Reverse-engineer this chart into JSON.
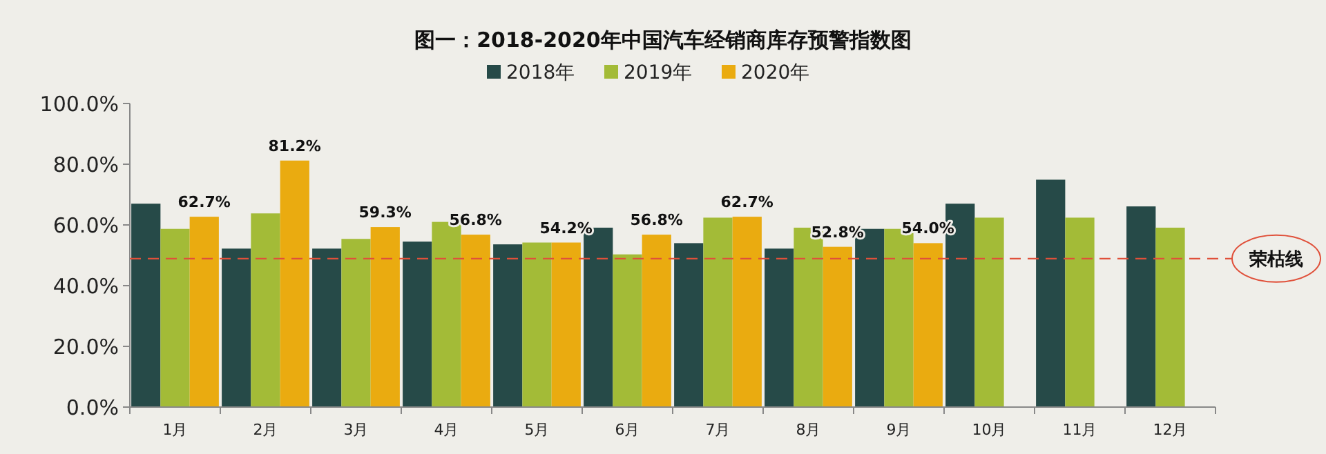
{
  "chart_data": {
    "type": "bar",
    "title": "图一：2018-2020年中国汽车经销商库存预警指数图",
    "categories": [
      "1月",
      "2月",
      "3月",
      "4月",
      "5月",
      "6月",
      "7月",
      "8月",
      "9月",
      "10月",
      "11月",
      "12月"
    ],
    "series": [
      {
        "name": "2018年",
        "color": "#264a48",
        "values": [
          67.0,
          52.2,
          52.2,
          54.5,
          53.6,
          59.1,
          54.0,
          52.2,
          58.7,
          67.0,
          74.9,
          66.1
        ]
      },
      {
        "name": "2019年",
        "color": "#a3bb37",
        "values": [
          58.7,
          63.8,
          55.4,
          61.0,
          54.2,
          50.3,
          62.4,
          59.1,
          58.7,
          62.4,
          62.4,
          59.1
        ]
      },
      {
        "name": "2020年",
        "color": "#eaab10",
        "values": [
          62.7,
          81.2,
          59.3,
          56.8,
          54.2,
          56.8,
          62.7,
          52.8,
          54.0,
          null,
          null,
          null
        ],
        "value_labels": [
          "62.7%",
          "81.2%",
          "59.3%",
          "56.8%",
          "54.2%",
          "56.8%",
          "62.7%",
          "52.8%",
          "54.0%",
          null,
          null,
          null
        ]
      }
    ],
    "ylim": [
      0,
      100
    ],
    "yticks": [
      {
        "value": 0,
        "label": "0.0%"
      },
      {
        "value": 20,
        "label": "20.0%"
      },
      {
        "value": 40,
        "label": "40.0%"
      },
      {
        "value": 60,
        "label": "60.0%"
      },
      {
        "value": 80,
        "label": "80.0%"
      },
      {
        "value": 100,
        "label": "100.0%"
      }
    ],
    "ref_lines": [
      {
        "axis": "y",
        "value": 48.9,
        "label": "荣枯线",
        "color": "#e0503a",
        "line_style": "dashed"
      }
    ],
    "legend": "top",
    "grid": false
  }
}
